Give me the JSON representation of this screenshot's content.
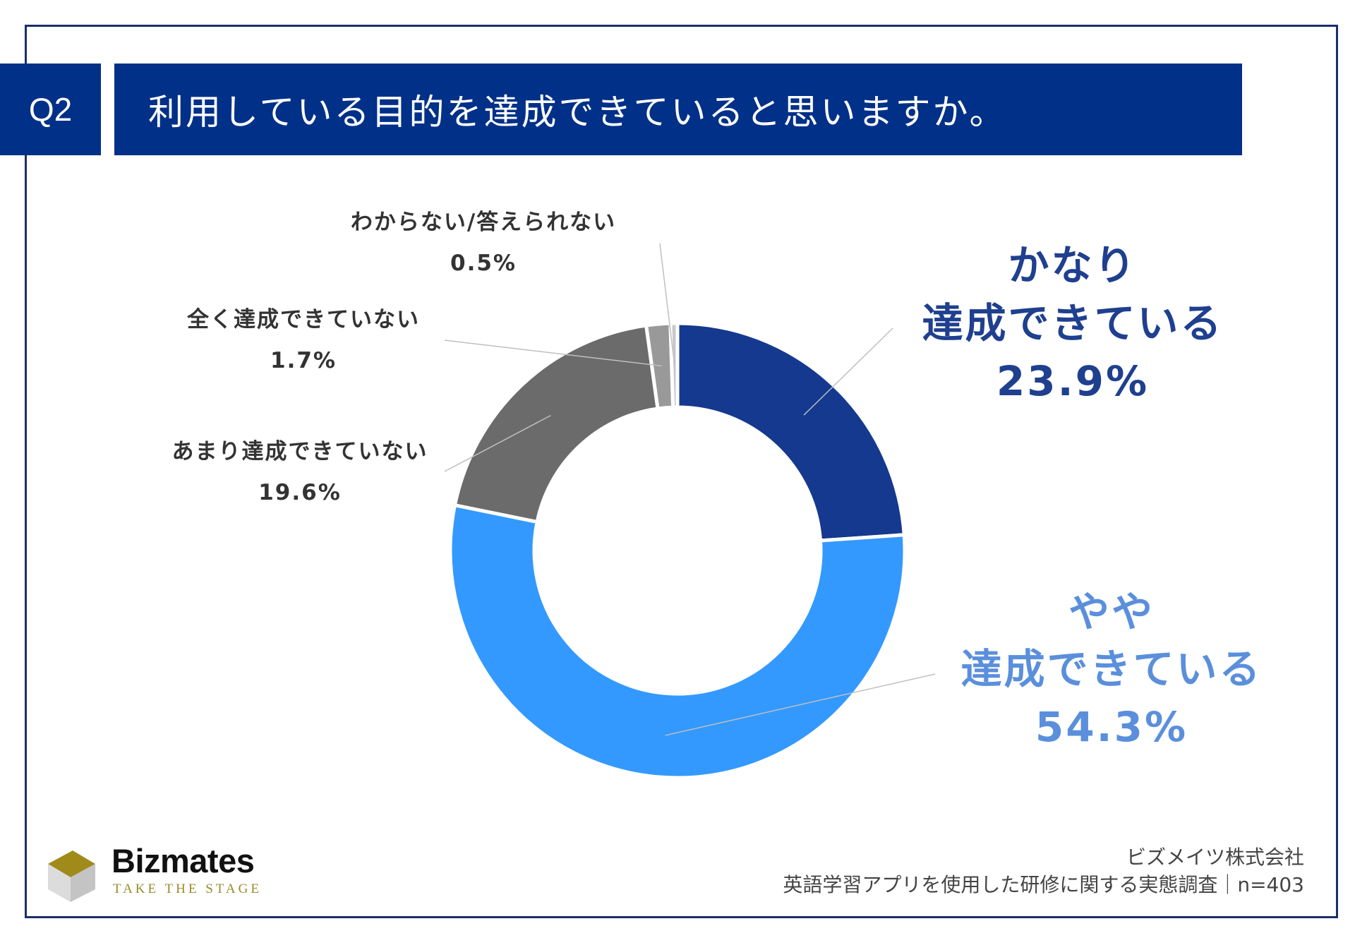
{
  "header": {
    "question_no": "Q2",
    "question": "利用している目的を達成できていると思いますか。"
  },
  "chart_data": {
    "type": "pie",
    "donut": true,
    "slices": [
      {
        "name_lines": [
          "かなり",
          "達成できている"
        ],
        "value": 23.9,
        "label": "23.9%",
        "color": "#14398f"
      },
      {
        "name_lines": [
          "やや",
          "達成できている"
        ],
        "value": 54.3,
        "label": "54.3%",
        "color": "#3399ff"
      },
      {
        "name_lines": [
          "あまり達成できていない"
        ],
        "value": 19.6,
        "label": "19.6%",
        "color": "#6b6b6b"
      },
      {
        "name_lines": [
          "全く達成できていない"
        ],
        "value": 1.7,
        "label": "1.7%",
        "color": "#999999"
      },
      {
        "name_lines": [
          "わからない/答えられない"
        ],
        "value": 0.5,
        "label": "0.5%",
        "color": "#c8c8c8"
      }
    ]
  },
  "brand": {
    "name": "Bizmates",
    "tagline": "TAKE THE STAGE"
  },
  "footer": {
    "company": "ビズメイツ株式会社",
    "survey": "英語学習アプリを使用した研修に関する実態調査｜n=403"
  },
  "colors": {
    "header_bg": "#003087",
    "frame": "#1a2f6b",
    "label_dark_blue": "#1f3f8f",
    "label_light_blue": "#5b8fdc"
  }
}
